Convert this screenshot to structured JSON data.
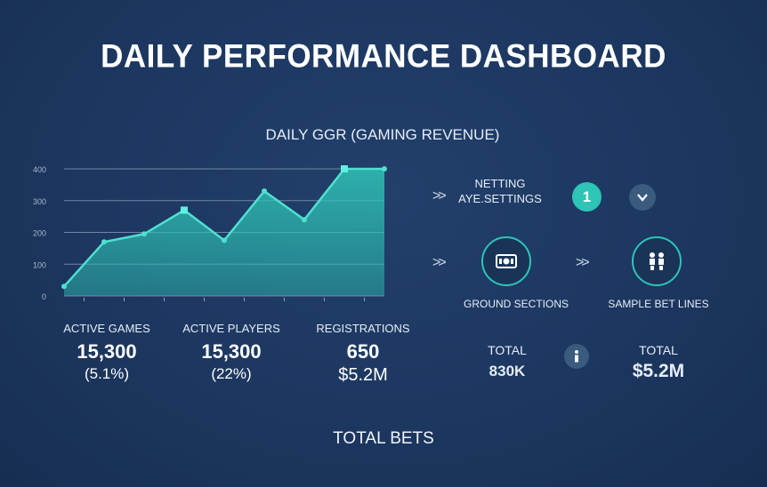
{
  "header": {
    "title": "DAILY PERFORMANCE DASHBOARD",
    "chart_title": "DAILY GGR (GAMING REVENUE)"
  },
  "chart_data": {
    "type": "area",
    "title": "DAILY GGR (GAMING REVENUE)",
    "x": [
      1,
      2,
      3,
      4,
      5,
      6,
      7,
      8,
      9
    ],
    "y_tick_labels": [
      "0",
      "100",
      "200",
      "300",
      "400"
    ],
    "ylim": [
      0,
      400
    ],
    "values": [
      30,
      170,
      195,
      270,
      175,
      330,
      240,
      400,
      400
    ],
    "marked_points": [
      3,
      7
    ],
    "grid": true,
    "color": "#2ec4b6"
  },
  "stats": [
    {
      "label": "ACTIVE GAMES",
      "value": "15,300",
      "sub": "(5.1%)"
    },
    {
      "label": "ACTIVE PLAYERS",
      "value": "15,300",
      "sub": "(22%)"
    },
    {
      "label": "REGISTRATIONS",
      "value": "650",
      "sub": "$5.2M"
    }
  ],
  "panel": {
    "row1": {
      "label": "NETTING\nAYE.SETTINGS",
      "badge": "1",
      "icon2": "chevron-down-icon"
    },
    "row2": {
      "left_icon": "cash-icon",
      "right_icon": "players-icon",
      "left_label": "GROUND SECTIONS",
      "right_label": "SAMPLE BET LINES"
    },
    "row3": {
      "left": {
        "label": "TOTAL",
        "value": "830K"
      },
      "icon": "info-icon",
      "right": {
        "label": "TOTAL",
        "value": "$5.2M"
      }
    }
  },
  "footer": {
    "label": "TOTAL BETS"
  },
  "colors": {
    "background": "#1c3760",
    "accent": "#2ec4b6",
    "grid": "#6f86a6"
  }
}
